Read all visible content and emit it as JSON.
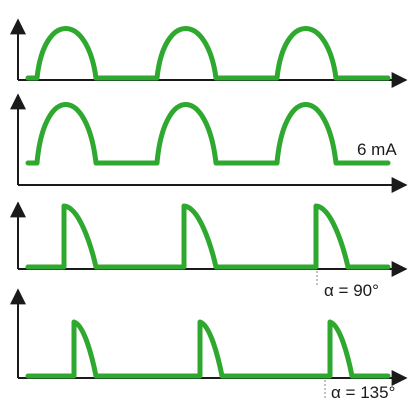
{
  "panels": [
    {
      "id": "panel-1",
      "annotation": ""
    },
    {
      "id": "panel-2",
      "annotation": "6 mA"
    },
    {
      "id": "panel-3",
      "annotation": "α = 90°"
    },
    {
      "id": "panel-4",
      "annotation": "α = 135°"
    }
  ],
  "colors": {
    "waveform": "#2ea82e",
    "axis": "#1a1a1a",
    "marker": "#9a9a9a"
  }
}
